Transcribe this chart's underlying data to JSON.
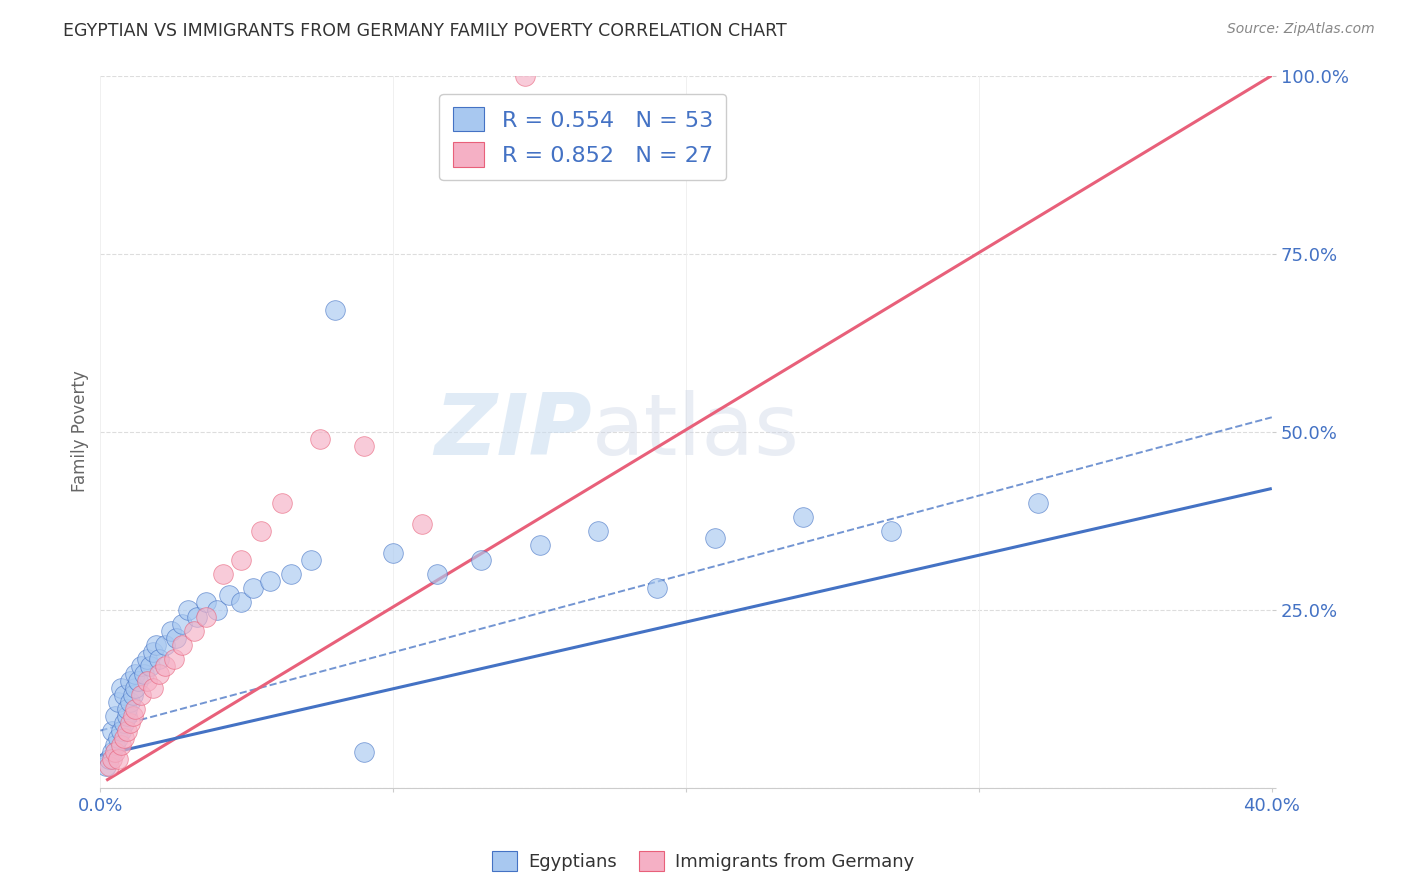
{
  "title": "EGYPTIAN VS IMMIGRANTS FROM GERMANY FAMILY POVERTY CORRELATION CHART",
  "source": "Source: ZipAtlas.com",
  "ylabel": "Family Poverty",
  "xlim": [
    0.0,
    0.4
  ],
  "ylim": [
    0.0,
    1.0
  ],
  "blue_R": 0.554,
  "blue_N": 53,
  "pink_R": 0.852,
  "pink_N": 27,
  "blue_color": "#A8C8F0",
  "pink_color": "#F5B0C5",
  "blue_line_color": "#4472C4",
  "pink_line_color": "#E8607A",
  "watermark_zip": "ZIP",
  "watermark_atlas": "atlas",
  "legend_label_blue": "Egyptians",
  "legend_label_pink": "Immigrants from Germany",
  "blue_scatter_x": [
    0.002,
    0.003,
    0.004,
    0.004,
    0.005,
    0.005,
    0.006,
    0.006,
    0.007,
    0.007,
    0.008,
    0.008,
    0.009,
    0.009,
    0.01,
    0.01,
    0.011,
    0.012,
    0.012,
    0.013,
    0.014,
    0.015,
    0.016,
    0.017,
    0.018,
    0.019,
    0.02,
    0.022,
    0.024,
    0.026,
    0.028,
    0.03,
    0.033,
    0.036,
    0.04,
    0.044,
    0.048,
    0.052,
    0.058,
    0.065,
    0.072,
    0.08,
    0.09,
    0.1,
    0.115,
    0.13,
    0.15,
    0.17,
    0.19,
    0.21,
    0.24,
    0.27,
    0.32
  ],
  "blue_scatter_y": [
    0.03,
    0.04,
    0.05,
    0.08,
    0.06,
    0.1,
    0.07,
    0.12,
    0.08,
    0.14,
    0.09,
    0.13,
    0.1,
    0.11,
    0.12,
    0.15,
    0.13,
    0.14,
    0.16,
    0.15,
    0.17,
    0.16,
    0.18,
    0.17,
    0.19,
    0.2,
    0.18,
    0.2,
    0.22,
    0.21,
    0.23,
    0.25,
    0.24,
    0.26,
    0.25,
    0.27,
    0.26,
    0.28,
    0.29,
    0.3,
    0.32,
    0.67,
    0.05,
    0.33,
    0.3,
    0.32,
    0.34,
    0.36,
    0.28,
    0.35,
    0.38,
    0.36,
    0.4
  ],
  "pink_scatter_x": [
    0.003,
    0.004,
    0.005,
    0.006,
    0.007,
    0.008,
    0.009,
    0.01,
    0.011,
    0.012,
    0.014,
    0.016,
    0.018,
    0.02,
    0.022,
    0.025,
    0.028,
    0.032,
    0.036,
    0.042,
    0.048,
    0.055,
    0.062,
    0.075,
    0.09,
    0.11,
    0.145
  ],
  "pink_scatter_y": [
    0.03,
    0.04,
    0.05,
    0.04,
    0.06,
    0.07,
    0.08,
    0.09,
    0.1,
    0.11,
    0.13,
    0.15,
    0.14,
    0.16,
    0.17,
    0.18,
    0.2,
    0.22,
    0.24,
    0.3,
    0.32,
    0.36,
    0.4,
    0.49,
    0.48,
    0.37,
    1.0
  ],
  "blue_line_x": [
    0.0,
    0.4
  ],
  "blue_line_y": [
    0.045,
    0.42
  ],
  "pink_line_x": [
    0.002,
    0.4
  ],
  "pink_line_y": [
    0.01,
    1.0
  ],
  "dash_line_x": [
    0.0,
    0.4
  ],
  "dash_line_y": [
    0.08,
    0.52
  ],
  "ytick_vals": [
    0.0,
    0.25,
    0.5,
    0.75,
    1.0
  ],
  "ytick_labels": [
    "",
    "25.0%",
    "50.0%",
    "75.0%",
    "100.0%"
  ],
  "xtick_vals": [
    0.0,
    0.1,
    0.2,
    0.3,
    0.4
  ],
  "xtick_labels": [
    "0.0%",
    "",
    "",
    "",
    "40.0%"
  ],
  "grid_color": "#DDDDDD",
  "tick_color": "#4472C4"
}
